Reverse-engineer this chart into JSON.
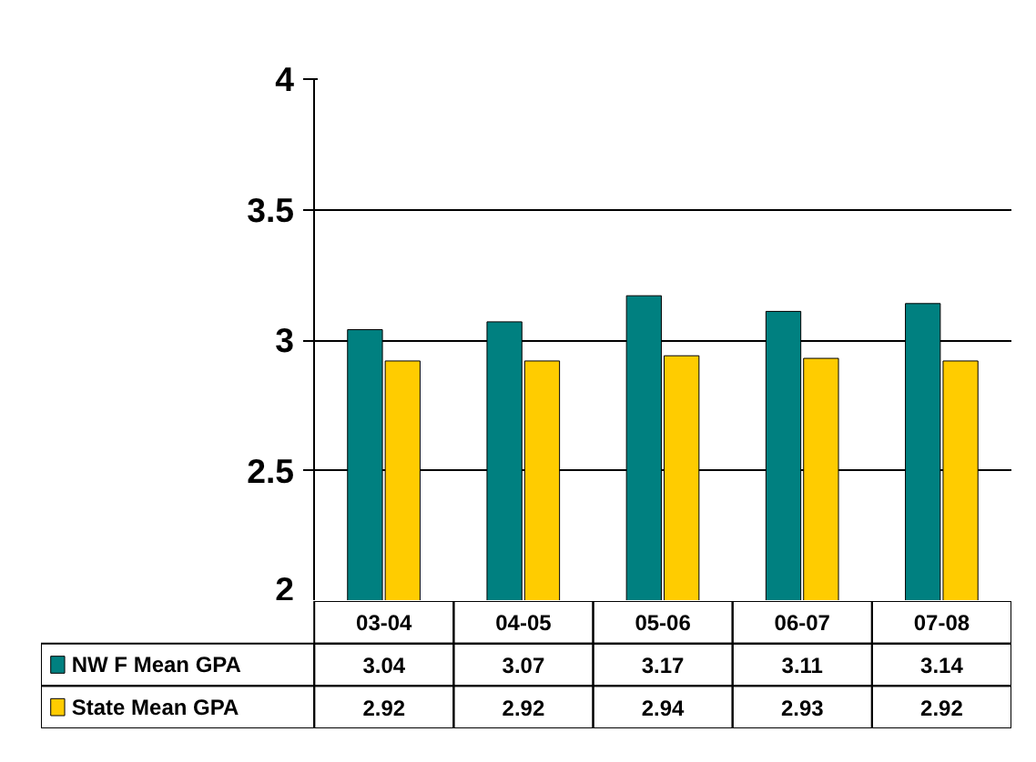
{
  "chart_data": {
    "type": "bar",
    "categories": [
      "03-04",
      "04-05",
      "05-06",
      "06-07",
      "07-08"
    ],
    "series": [
      {
        "name": "NW F Mean GPA",
        "color": "#008080",
        "values": [
          3.04,
          3.07,
          3.17,
          3.11,
          3.14
        ]
      },
      {
        "name": "State Mean GPA",
        "color": "#ffcc00",
        "values": [
          2.92,
          2.92,
          2.94,
          2.93,
          2.92
        ]
      }
    ],
    "ylim": [
      2,
      4
    ],
    "yticks": [
      2,
      2.5,
      3,
      3.5,
      4
    ],
    "grid": "y",
    "data_labels": true,
    "legend": "bottom left"
  }
}
